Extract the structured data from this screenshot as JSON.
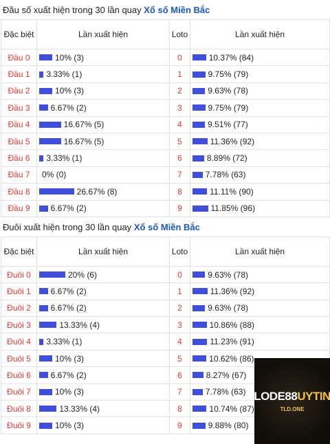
{
  "tables": [
    {
      "title": "Đầu số xuất hiện trong 30 lần quay",
      "link": "Xổ số Miền Bắc",
      "headers": [
        "Đặc biệt",
        "Lần xuất hiện",
        "Loto",
        "Lần xuất hiện"
      ],
      "rows": [
        [
          "Đầu 0",
          10,
          "10% (3)",
          0,
          10.37,
          "10.37% (84)"
        ],
        [
          "Đầu 1",
          3.33,
          "3.33% (1)",
          1,
          9.75,
          "9.75% (79)"
        ],
        [
          "Đầu 2",
          10,
          "10% (3)",
          2,
          9.63,
          "9.63% (78)"
        ],
        [
          "Đầu 3",
          6.67,
          "6.67% (2)",
          3,
          9.75,
          "9.75% (79)"
        ],
        [
          "Đầu 4",
          16.67,
          "16.67% (5)",
          4,
          9.51,
          "9.51% (77)"
        ],
        [
          "Đầu 5",
          16.67,
          "16.67% (5)",
          5,
          11.36,
          "11.36% (92)"
        ],
        [
          "Đầu 6",
          3.33,
          "3.33% (1)",
          6,
          8.89,
          "8.89% (72)"
        ],
        [
          "Đầu 7",
          0,
          "0% (0)",
          7,
          7.78,
          "7.78% (63)"
        ],
        [
          "Đầu 8",
          26.67,
          "26.67% (8)",
          8,
          11.11,
          "11.11% (90)"
        ],
        [
          "Đầu 9",
          6.67,
          "6.67% (2)",
          9,
          11.85,
          "11.85% (96)"
        ]
      ]
    },
    {
      "title": "Đuôi xuất hiện trong 30 lần quay",
      "link": "Xổ số Miền Bắc",
      "headers": [
        "Đặc biệt",
        "Lần xuất hiện",
        "Loto",
        "Lần xuất hiện"
      ],
      "rows": [
        [
          "Đuôi 0",
          20,
          "20% (6)",
          0,
          9.63,
          "9.63% (78)"
        ],
        [
          "Đuôi 1",
          6.67,
          "6.67% (2)",
          1,
          11.36,
          "11.36% (92)"
        ],
        [
          "Đuôi 2",
          6.67,
          "6.67% (2)",
          2,
          9.63,
          "9.63% (78)"
        ],
        [
          "Đuôi 3",
          13.33,
          "13.33% (4)",
          3,
          10.86,
          "10.86% (88)"
        ],
        [
          "Đuôi 4",
          3.33,
          "3.33% (1)",
          4,
          11.23,
          "11.23% (91)"
        ],
        [
          "Đuôi 5",
          10,
          "10% (3)",
          5,
          10.62,
          "10.62% (86)"
        ],
        [
          "Đuôi 6",
          6.67,
          "6.67% (2)",
          6,
          8.27,
          "8.27% (67)"
        ],
        [
          "Đuôi 7",
          10,
          "10% (3)",
          7,
          7.78,
          "7.78% (63)"
        ],
        [
          "Đuôi 8",
          13.33,
          "13.33% (4)",
          8,
          10.74,
          "10.74% (87)"
        ],
        [
          "Đuôi 9",
          10,
          "10% (3)",
          9,
          9.88,
          "9.88% (80)"
        ]
      ]
    }
  ],
  "logo": {
    "brand": "LODE88",
    "accent": "UYTIN",
    "domain": "TLD.ONE"
  }
}
